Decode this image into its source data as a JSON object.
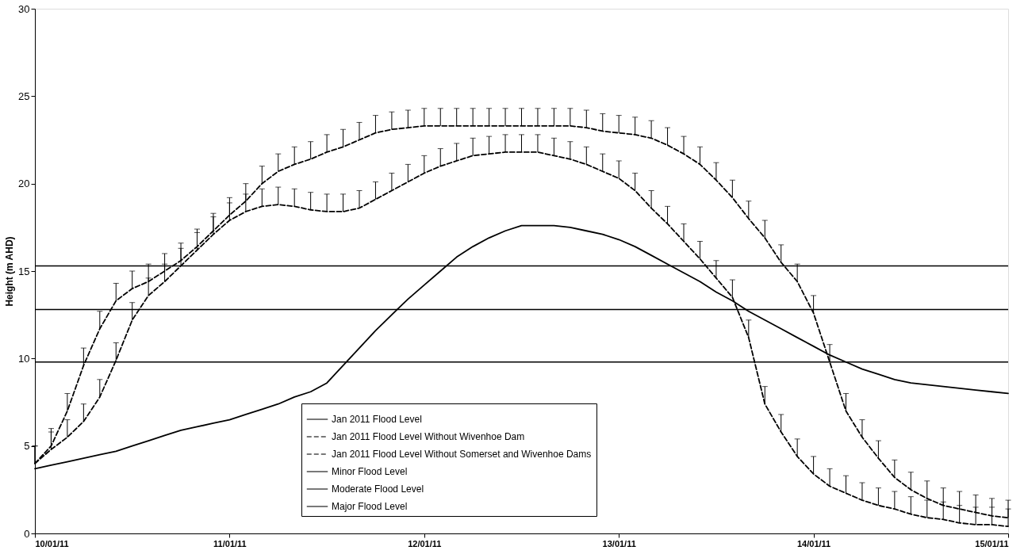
{
  "chart_data": {
    "type": "line",
    "ylabel": "Height (m AHD)",
    "x": [
      "2011-01-10T00:00",
      "2011-01-10T02:00",
      "2011-01-10T04:00",
      "2011-01-10T06:00",
      "2011-01-10T08:00",
      "2011-01-10T10:00",
      "2011-01-10T12:00",
      "2011-01-10T14:00",
      "2011-01-10T16:00",
      "2011-01-10T18:00",
      "2011-01-10T20:00",
      "2011-01-10T22:00",
      "2011-01-11T00:00",
      "2011-01-11T02:00",
      "2011-01-11T04:00",
      "2011-01-11T06:00",
      "2011-01-11T08:00",
      "2011-01-11T10:00",
      "2011-01-11T12:00",
      "2011-01-11T14:00",
      "2011-01-11T16:00",
      "2011-01-11T18:00",
      "2011-01-11T20:00",
      "2011-01-11T22:00",
      "2011-01-12T00:00",
      "2011-01-12T02:00",
      "2011-01-12T04:00",
      "2011-01-12T06:00",
      "2011-01-12T08:00",
      "2011-01-12T10:00",
      "2011-01-12T12:00",
      "2011-01-12T14:00",
      "2011-01-12T16:00",
      "2011-01-12T18:00",
      "2011-01-12T20:00",
      "2011-01-12T22:00",
      "2011-01-13T00:00",
      "2011-01-13T02:00",
      "2011-01-13T04:00",
      "2011-01-13T06:00",
      "2011-01-13T08:00",
      "2011-01-13T10:00",
      "2011-01-13T12:00",
      "2011-01-13T14:00",
      "2011-01-13T16:00",
      "2011-01-13T18:00",
      "2011-01-13T20:00",
      "2011-01-13T22:00",
      "2011-01-14T00:00",
      "2011-01-14T02:00",
      "2011-01-14T04:00",
      "2011-01-14T06:00",
      "2011-01-14T08:00",
      "2011-01-14T10:00",
      "2011-01-14T12:00",
      "2011-01-14T14:00",
      "2011-01-14T16:00",
      "2011-01-14T18:00",
      "2011-01-14T20:00",
      "2011-01-14T22:00",
      "2011-01-15T00:00"
    ],
    "xlim": [
      "2011-01-10T00:00",
      "2011-01-15T00:00"
    ],
    "xticks": [
      {
        "value": "2011-01-10",
        "label": "10/01/11"
      },
      {
        "value": "2011-01-11",
        "label": "11/01/11"
      },
      {
        "value": "2011-01-12",
        "label": "12/01/11"
      },
      {
        "value": "2011-01-13",
        "label": "13/01/11"
      },
      {
        "value": "2011-01-14",
        "label": "14/01/11"
      },
      {
        "value": "2011-01-15",
        "label": "15/01/11"
      }
    ],
    "ylim": [
      0,
      30
    ],
    "yticks": [
      0,
      5,
      10,
      15,
      20,
      25,
      30
    ],
    "legend": "bottom",
    "series": [
      {
        "name": "Jan 2011 Flood Level",
        "color": "#000000",
        "line_style": "solid",
        "values": [
          3.7,
          3.9,
          4.1,
          4.3,
          4.5,
          4.7,
          5.0,
          5.3,
          5.6,
          5.9,
          6.1,
          6.3,
          6.5,
          6.8,
          7.1,
          7.4,
          7.8,
          8.1,
          8.6,
          9.6,
          10.6,
          11.6,
          12.5,
          13.4,
          14.2,
          15.0,
          15.8,
          16.4,
          16.9,
          17.3,
          17.6,
          17.6,
          17.6,
          17.5,
          17.3,
          17.1,
          16.8,
          16.4,
          15.9,
          15.4,
          14.9,
          14.4,
          13.8,
          13.3,
          12.7,
          12.2,
          11.7,
          11.2,
          10.7,
          10.2,
          9.8,
          9.4,
          9.1,
          8.8,
          8.6,
          8.5,
          8.4,
          8.3,
          8.2,
          8.1,
          8.0
        ]
      },
      {
        "name": "Jan 2011 Flood Level Without Wivenhoe Dam",
        "color": "#000000",
        "line_style": "dashed",
        "values": [
          4.0,
          4.8,
          5.5,
          6.4,
          7.8,
          9.9,
          12.2,
          13.6,
          14.4,
          15.3,
          16.2,
          17.1,
          17.9,
          18.4,
          18.7,
          18.8,
          18.7,
          18.5,
          18.4,
          18.4,
          18.6,
          19.1,
          19.6,
          20.1,
          20.6,
          21.0,
          21.3,
          21.6,
          21.7,
          21.8,
          21.8,
          21.8,
          21.6,
          21.4,
          21.1,
          20.7,
          20.3,
          19.6,
          18.6,
          17.7,
          16.7,
          15.7,
          14.6,
          13.5,
          11.2,
          7.4,
          5.8,
          4.4,
          3.4,
          2.7,
          2.3,
          1.9,
          1.6,
          1.4,
          1.1,
          0.9,
          0.8,
          0.6,
          0.5,
          0.5,
          0.4
        ],
        "errors": [
          [
            4.0,
            5.0
          ],
          [
            4.8,
            5.8
          ],
          [
            5.5,
            6.5
          ],
          [
            6.4,
            7.4
          ],
          [
            7.8,
            8.8
          ],
          [
            9.9,
            10.9
          ],
          [
            12.2,
            13.2
          ],
          [
            13.6,
            14.6
          ],
          [
            14.4,
            15.4
          ],
          [
            15.3,
            16.3
          ],
          [
            16.2,
            17.2
          ],
          [
            17.1,
            18.1
          ],
          [
            17.9,
            18.9
          ],
          [
            18.4,
            19.4
          ],
          [
            18.7,
            19.7
          ],
          [
            18.8,
            19.8
          ],
          [
            18.7,
            19.7
          ],
          [
            18.5,
            19.5
          ],
          [
            18.4,
            19.4
          ],
          [
            18.4,
            19.4
          ],
          [
            18.6,
            19.6
          ],
          [
            19.1,
            20.1
          ],
          [
            19.6,
            20.6
          ],
          [
            20.1,
            21.1
          ],
          [
            20.6,
            21.6
          ],
          [
            21.0,
            22.0
          ],
          [
            21.3,
            22.3
          ],
          [
            21.6,
            22.6
          ],
          [
            21.7,
            22.7
          ],
          [
            21.8,
            22.8
          ],
          [
            21.8,
            22.8
          ],
          [
            21.8,
            22.8
          ],
          [
            21.6,
            22.6
          ],
          [
            21.4,
            22.4
          ],
          [
            21.1,
            22.1
          ],
          [
            20.7,
            21.7
          ],
          [
            20.3,
            21.3
          ],
          [
            19.6,
            20.6
          ],
          [
            18.6,
            19.6
          ],
          [
            17.7,
            18.7
          ],
          [
            16.7,
            17.7
          ],
          [
            15.7,
            16.7
          ],
          [
            14.6,
            15.6
          ],
          [
            13.5,
            14.5
          ],
          [
            11.2,
            12.2
          ],
          [
            7.4,
            8.4
          ],
          [
            5.8,
            6.8
          ],
          [
            4.4,
            5.4
          ],
          [
            3.4,
            4.4
          ],
          [
            2.7,
            3.7
          ],
          [
            2.3,
            3.3
          ],
          [
            1.9,
            2.9
          ],
          [
            1.6,
            2.6
          ],
          [
            1.4,
            2.4
          ],
          [
            1.1,
            2.1
          ],
          [
            0.9,
            1.9
          ],
          [
            0.8,
            1.8
          ],
          [
            0.6,
            1.6
          ],
          [
            0.5,
            1.5
          ],
          [
            0.5,
            1.5
          ],
          [
            0.4,
            1.4
          ]
        ]
      },
      {
        "name": "Jan 2011 Flood Level Without Somerset and Wivenhoe Dams",
        "color": "#000000",
        "line_style": "dashed",
        "values": [
          4.0,
          5.0,
          7.0,
          9.6,
          11.7,
          13.3,
          14.0,
          14.4,
          15.0,
          15.6,
          16.4,
          17.3,
          18.2,
          19.0,
          20.0,
          20.7,
          21.1,
          21.4,
          21.8,
          22.1,
          22.5,
          22.9,
          23.1,
          23.2,
          23.3,
          23.3,
          23.3,
          23.3,
          23.3,
          23.3,
          23.3,
          23.3,
          23.3,
          23.3,
          23.2,
          23.0,
          22.9,
          22.8,
          22.6,
          22.2,
          21.7,
          21.1,
          20.2,
          19.2,
          18.0,
          16.9,
          15.5,
          14.4,
          12.6,
          9.8,
          7.0,
          5.5,
          4.3,
          3.2,
          2.5,
          2.0,
          1.6,
          1.4,
          1.2,
          1.0,
          0.9
        ],
        "errors": [
          [
            4.0,
            5.0
          ],
          [
            5.0,
            6.0
          ],
          [
            7.0,
            8.0
          ],
          [
            9.6,
            10.6
          ],
          [
            11.7,
            12.7
          ],
          [
            13.3,
            14.3
          ],
          [
            14.0,
            15.0
          ],
          [
            14.4,
            15.4
          ],
          [
            15.0,
            16.0
          ],
          [
            15.6,
            16.6
          ],
          [
            16.4,
            17.4
          ],
          [
            17.3,
            18.3
          ],
          [
            18.2,
            19.2
          ],
          [
            19.0,
            20.0
          ],
          [
            20.0,
            21.0
          ],
          [
            20.7,
            21.7
          ],
          [
            21.1,
            22.1
          ],
          [
            21.4,
            22.4
          ],
          [
            21.8,
            22.8
          ],
          [
            22.1,
            23.1
          ],
          [
            22.5,
            23.5
          ],
          [
            22.9,
            23.9
          ],
          [
            23.1,
            24.1
          ],
          [
            23.2,
            24.2
          ],
          [
            23.3,
            24.3
          ],
          [
            23.3,
            24.3
          ],
          [
            23.3,
            24.3
          ],
          [
            23.3,
            24.3
          ],
          [
            23.3,
            24.3
          ],
          [
            23.3,
            24.3
          ],
          [
            23.3,
            24.3
          ],
          [
            23.3,
            24.3
          ],
          [
            23.3,
            24.3
          ],
          [
            23.3,
            24.3
          ],
          [
            23.2,
            24.2
          ],
          [
            23.0,
            24.0
          ],
          [
            22.9,
            23.9
          ],
          [
            22.8,
            23.8
          ],
          [
            22.6,
            23.6
          ],
          [
            22.2,
            23.2
          ],
          [
            21.7,
            22.7
          ],
          [
            21.1,
            22.1
          ],
          [
            20.2,
            21.2
          ],
          [
            19.2,
            20.2
          ],
          [
            18.0,
            19.0
          ],
          [
            16.9,
            17.9
          ],
          [
            15.5,
            16.5
          ],
          [
            14.4,
            15.4
          ],
          [
            12.6,
            13.6
          ],
          [
            9.8,
            10.8
          ],
          [
            7.0,
            8.0
          ],
          [
            5.5,
            6.5
          ],
          [
            4.3,
            5.3
          ],
          [
            3.2,
            4.2
          ],
          [
            2.5,
            3.5
          ],
          [
            2.0,
            3.0
          ],
          [
            1.6,
            2.6
          ],
          [
            1.4,
            2.4
          ],
          [
            1.2,
            2.2
          ],
          [
            1.0,
            2.0
          ],
          [
            0.9,
            1.9
          ]
        ]
      }
    ],
    "ref_lines": [
      {
        "axis": "y",
        "value": 9.8,
        "label": "Minor Flood Level",
        "color": "#000000",
        "line_style": "solid"
      },
      {
        "axis": "y",
        "value": 12.8,
        "label": "Moderate Flood Level",
        "color": "#000000",
        "line_style": "solid"
      },
      {
        "axis": "y",
        "value": 15.3,
        "label": "Major Flood Level",
        "color": "#000000",
        "line_style": "solid"
      }
    ]
  }
}
